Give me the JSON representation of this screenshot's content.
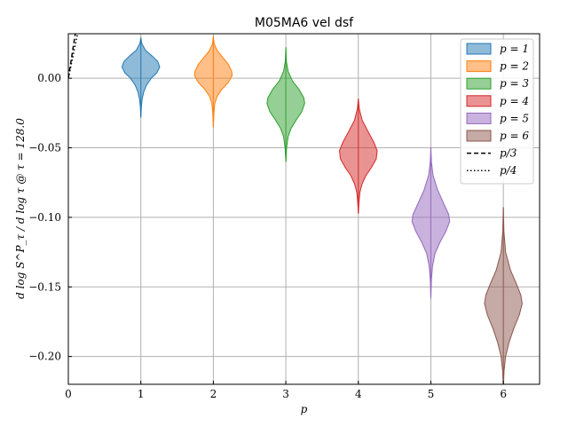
{
  "chart_data": {
    "type": "violin",
    "title": "M05MA6 vel dsf",
    "xlabel": "p",
    "ylabel": "d log S^P_τ / d log τ @ τ = 128.0",
    "xlim": [
      0,
      6.5
    ],
    "ylim": [
      -0.22,
      0.032
    ],
    "xticks": [
      0,
      1,
      2,
      3,
      4,
      5,
      6
    ],
    "yticks": [
      0.0,
      -0.05,
      -0.1,
      -0.15,
      -0.2
    ],
    "ytick_labels": [
      "0.00",
      "−0.05",
      "−0.10",
      "−0.15",
      "−0.20"
    ],
    "grid": true,
    "legend_position": "upper-right",
    "series": [
      {
        "name": "p = 1",
        "x": 1,
        "color": "#1f77b4",
        "min": -0.028,
        "max": 0.029,
        "median": 0.008,
        "profile": [
          [
            0.029,
            0.002
          ],
          [
            0.025,
            0.05
          ],
          [
            0.02,
            0.25
          ],
          [
            0.016,
            0.6
          ],
          [
            0.012,
            0.9
          ],
          [
            0.008,
            1.0
          ],
          [
            0.004,
            0.85
          ],
          [
            0.0,
            0.55
          ],
          [
            -0.005,
            0.3
          ],
          [
            -0.01,
            0.15
          ],
          [
            -0.015,
            0.07
          ],
          [
            -0.02,
            0.03
          ],
          [
            -0.028,
            0.002
          ]
        ],
        "halfwidth": 0.26
      },
      {
        "name": "p = 2",
        "x": 2,
        "color": "#ff7f0e",
        "min": -0.035,
        "max": 0.03,
        "median": 0.002,
        "profile": [
          [
            0.03,
            0.002
          ],
          [
            0.025,
            0.04
          ],
          [
            0.02,
            0.2
          ],
          [
            0.015,
            0.5
          ],
          [
            0.01,
            0.8
          ],
          [
            0.005,
            0.97
          ],
          [
            0.002,
            1.0
          ],
          [
            -0.003,
            0.8
          ],
          [
            -0.008,
            0.45
          ],
          [
            -0.013,
            0.2
          ],
          [
            -0.018,
            0.08
          ],
          [
            -0.025,
            0.03
          ],
          [
            -0.035,
            0.002
          ]
        ],
        "halfwidth": 0.26
      },
      {
        "name": "p = 3",
        "x": 3,
        "color": "#2ca02c",
        "min": -0.06,
        "max": 0.022,
        "median": -0.017,
        "profile": [
          [
            0.022,
            0.002
          ],
          [
            0.012,
            0.03
          ],
          [
            0.005,
            0.12
          ],
          [
            -0.002,
            0.35
          ],
          [
            -0.008,
            0.7
          ],
          [
            -0.014,
            0.95
          ],
          [
            -0.018,
            1.0
          ],
          [
            -0.024,
            0.85
          ],
          [
            -0.03,
            0.55
          ],
          [
            -0.036,
            0.28
          ],
          [
            -0.042,
            0.12
          ],
          [
            -0.05,
            0.04
          ],
          [
            -0.06,
            0.002
          ]
        ],
        "halfwidth": 0.26
      },
      {
        "name": "p = 4",
        "x": 4,
        "color": "#d62728",
        "min": -0.097,
        "max": -0.015,
        "median": -0.054,
        "profile": [
          [
            -0.015,
            0.002
          ],
          [
            -0.022,
            0.05
          ],
          [
            -0.03,
            0.2
          ],
          [
            -0.038,
            0.5
          ],
          [
            -0.046,
            0.82
          ],
          [
            -0.052,
            1.0
          ],
          [
            -0.058,
            0.95
          ],
          [
            -0.064,
            0.7
          ],
          [
            -0.07,
            0.4
          ],
          [
            -0.076,
            0.2
          ],
          [
            -0.082,
            0.08
          ],
          [
            -0.09,
            0.03
          ],
          [
            -0.097,
            0.002
          ]
        ],
        "halfwidth": 0.26
      },
      {
        "name": "p = 5",
        "x": 5,
        "color": "#9467bd",
        "min": -0.158,
        "max": -0.05,
        "median": -0.102,
        "profile": [
          [
            -0.05,
            0.002
          ],
          [
            -0.06,
            0.03
          ],
          [
            -0.07,
            0.12
          ],
          [
            -0.08,
            0.35
          ],
          [
            -0.09,
            0.68
          ],
          [
            -0.098,
            0.95
          ],
          [
            -0.103,
            1.0
          ],
          [
            -0.11,
            0.8
          ],
          [
            -0.118,
            0.48
          ],
          [
            -0.126,
            0.22
          ],
          [
            -0.135,
            0.09
          ],
          [
            -0.145,
            0.03
          ],
          [
            -0.158,
            0.002
          ]
        ],
        "halfwidth": 0.26
      },
      {
        "name": "p = 6",
        "x": 6,
        "color": "#8c564b",
        "min": -0.222,
        "max": -0.093,
        "median": -0.163,
        "profile": [
          [
            -0.093,
            0.002
          ],
          [
            -0.11,
            0.03
          ],
          [
            -0.125,
            0.12
          ],
          [
            -0.138,
            0.38
          ],
          [
            -0.148,
            0.7
          ],
          [
            -0.156,
            0.93
          ],
          [
            -0.162,
            1.0
          ],
          [
            -0.17,
            0.85
          ],
          [
            -0.18,
            0.55
          ],
          [
            -0.19,
            0.3
          ],
          [
            -0.2,
            0.12
          ],
          [
            -0.21,
            0.04
          ],
          [
            -0.222,
            0.002
          ]
        ],
        "halfwidth": 0.26
      }
    ],
    "reference_lines": [
      {
        "name": "p/3",
        "style": "dashed",
        "slope": 0.3333,
        "intercept": 0.0
      },
      {
        "name": "p/4",
        "style": "dotted",
        "slope": 0.25,
        "intercept": 0.0
      }
    ]
  }
}
